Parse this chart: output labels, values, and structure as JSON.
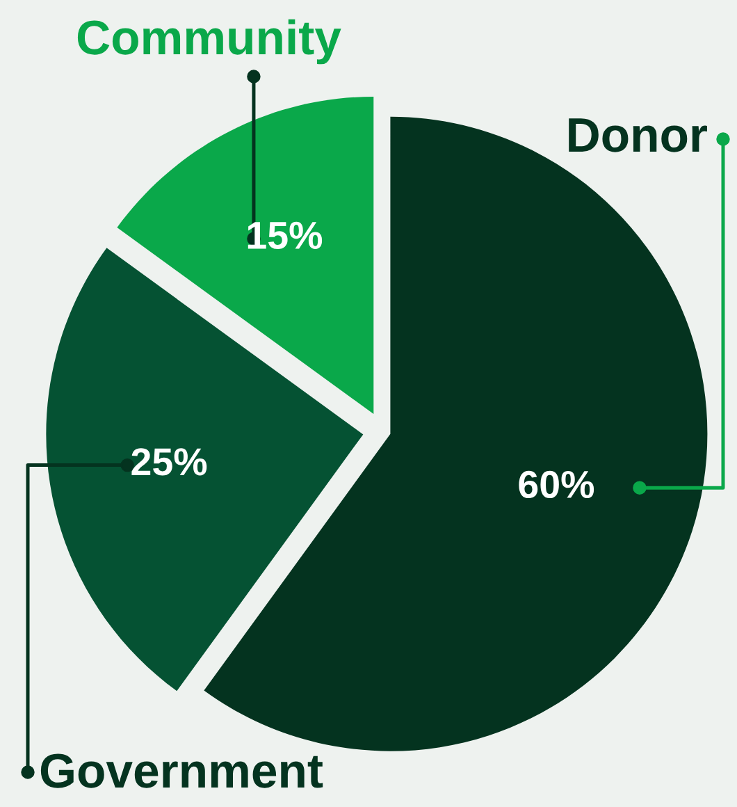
{
  "chart_data": {
    "type": "pie",
    "categories": [
      "Donor",
      "Government",
      "Community"
    ],
    "values": [
      60,
      25,
      15
    ],
    "value_labels": [
      "60%",
      "25%",
      "15%"
    ],
    "colors": [
      "#04331f",
      "#055233",
      "#0aa84a"
    ],
    "legend": false
  }
}
